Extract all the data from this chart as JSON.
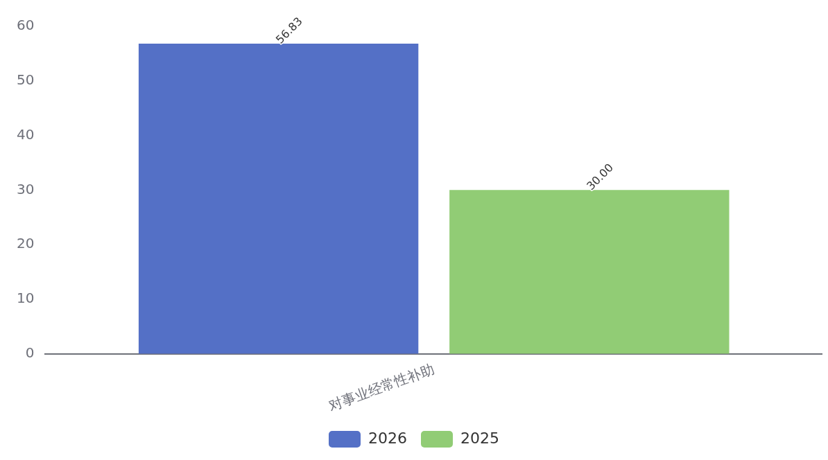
{
  "chart_data": {
    "type": "bar",
    "categories": [
      "对事业经常性补助"
    ],
    "series": [
      {
        "name": "2026",
        "color": "#5470c6",
        "values": [
          56.83
        ],
        "value_labels": [
          "56.83"
        ]
      },
      {
        "name": "2025",
        "color": "#91cc75",
        "values": [
          30
        ],
        "value_labels": [
          "30.00"
        ]
      }
    ],
    "ylim": [
      0,
      60
    ],
    "yticks": [
      0,
      10,
      20,
      30,
      40,
      50,
      60
    ],
    "grid": false,
    "legend": "bottom"
  }
}
